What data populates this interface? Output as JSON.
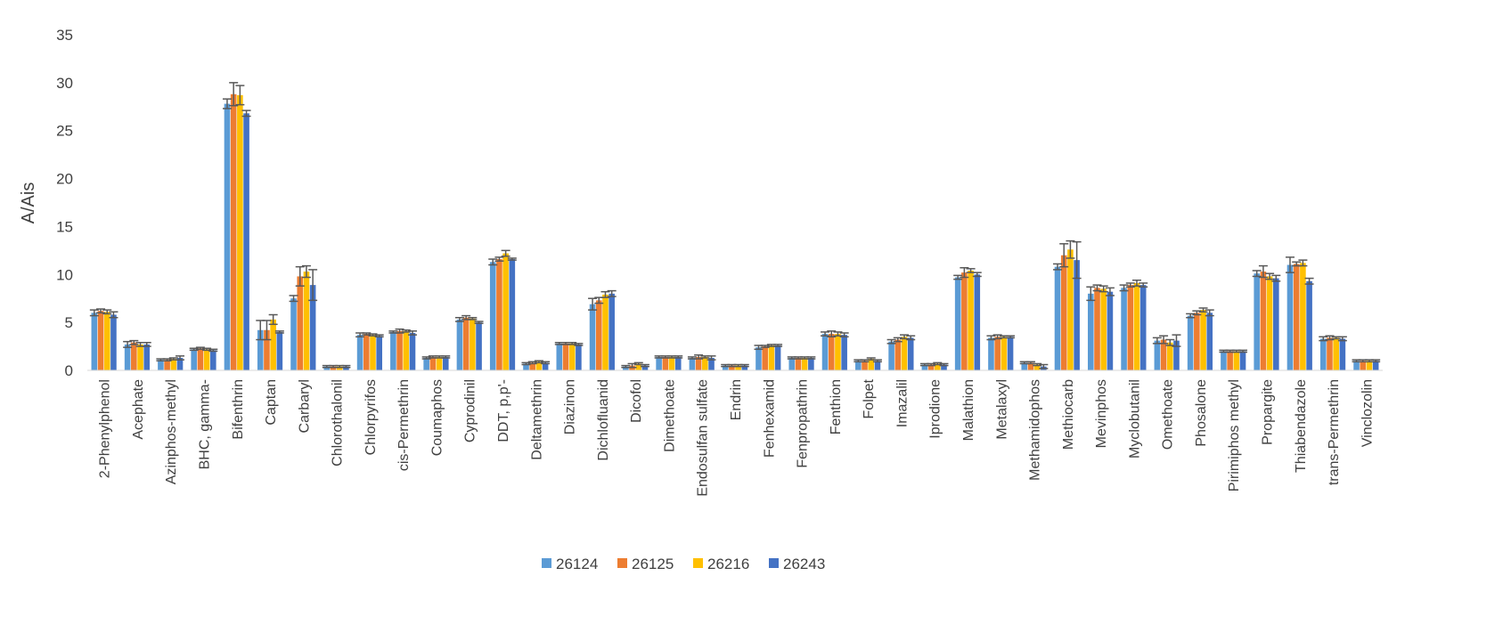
{
  "chart_data": {
    "type": "bar",
    "title": "",
    "xlabel": "",
    "ylabel": "A/Ais",
    "ylim": [
      0,
      35
    ],
    "yticks": [
      0,
      5,
      10,
      15,
      20,
      25,
      30,
      35
    ],
    "grid": false,
    "legend": "bottom",
    "error_bars": true,
    "categories": [
      "2-Phenylphenol",
      "Acephate",
      "Azinphos-methyl",
      "BHC, gamma-",
      "Bifenthrin",
      "Captan",
      "Carbaryl",
      "Chlorothalonil",
      "Chlorpyrifos",
      "cis-Permethrin",
      "Coumaphos",
      "Cyprodinil",
      "DDT, p,p'-",
      "Deltamethrin",
      "Diazinon",
      "Dichlofluanid",
      "Dicofol",
      "Dimethoate",
      "Endosulfan sulfate",
      "Endrin",
      "Fenhexamid",
      "Fenpropathrin",
      "Fenthion",
      "Folpet",
      "Imazalil",
      "Iprodione",
      "Malathion",
      "Metalaxyl",
      "Methamidophos",
      "Methiocarb",
      "Mevinphos",
      "Myclobutanil",
      "Omethoate",
      "Phosalone",
      "Pirimiphos methyl",
      "Propargite",
      "Thiabendazole",
      "trans-Permethrin",
      "Vinclozolin"
    ],
    "series": [
      {
        "name": "26124",
        "color": "#5B9BD5",
        "values": [
          6.0,
          2.7,
          1.1,
          2.2,
          27.8,
          4.2,
          7.5,
          0.4,
          3.7,
          4.0,
          1.3,
          5.3,
          11.3,
          0.7,
          2.8,
          6.9,
          0.4,
          1.4,
          1.3,
          0.5,
          2.4,
          1.3,
          3.8,
          1.0,
          3.0,
          0.6,
          9.7,
          3.4,
          0.8,
          10.8,
          8.0,
          8.6,
          3.1,
          5.7,
          2.0,
          10.1,
          11.0,
          3.3,
          1.0
        ],
        "errors": [
          0.3,
          0.3,
          0.1,
          0.1,
          0.5,
          1.0,
          0.3,
          0.1,
          0.2,
          0.1,
          0.1,
          0.2,
          0.3,
          0.1,
          0.1,
          0.6,
          0.1,
          0.1,
          0.1,
          0.1,
          0.2,
          0.1,
          0.2,
          0.1,
          0.2,
          0.1,
          0.2,
          0.2,
          0.1,
          0.3,
          0.7,
          0.3,
          0.3,
          0.2,
          0.1,
          0.3,
          0.8,
          0.2,
          0.1
        ]
      },
      {
        "name": "26125",
        "color": "#ED7D31",
        "values": [
          6.2,
          2.9,
          1.1,
          2.3,
          28.8,
          4.2,
          9.8,
          0.4,
          3.8,
          4.1,
          1.4,
          5.5,
          11.6,
          0.8,
          2.8,
          7.3,
          0.5,
          1.4,
          1.4,
          0.5,
          2.5,
          1.3,
          3.8,
          1.0,
          3.2,
          0.6,
          10.2,
          3.5,
          0.8,
          12.0,
          8.6,
          8.9,
          3.2,
          6.0,
          2.0,
          10.3,
          11.1,
          3.4,
          1.0
        ],
        "errors": [
          0.2,
          0.2,
          0.1,
          0.1,
          1.2,
          1.0,
          1.0,
          0.1,
          0.1,
          0.2,
          0.1,
          0.2,
          0.2,
          0.1,
          0.1,
          0.3,
          0.2,
          0.1,
          0.2,
          0.1,
          0.1,
          0.1,
          0.3,
          0.1,
          0.2,
          0.1,
          0.5,
          0.2,
          0.1,
          1.2,
          0.3,
          0.2,
          0.4,
          0.2,
          0.1,
          0.6,
          0.2,
          0.2,
          0.1
        ]
      },
      {
        "name": "26216",
        "color": "#FFC000",
        "values": [
          6.1,
          2.7,
          1.2,
          2.2,
          28.7,
          5.3,
          10.3,
          0.4,
          3.7,
          4.1,
          1.4,
          5.4,
          12.2,
          0.9,
          2.8,
          7.9,
          0.7,
          1.4,
          1.4,
          0.5,
          2.6,
          1.3,
          3.8,
          1.2,
          3.5,
          0.7,
          10.4,
          3.5,
          0.6,
          12.6,
          8.5,
          9.1,
          2.9,
          6.3,
          2.0,
          9.8,
          11.2,
          3.4,
          1.0
        ],
        "errors": [
          0.2,
          0.2,
          0.1,
          0.1,
          1.0,
          0.5,
          0.6,
          0.1,
          0.1,
          0.1,
          0.1,
          0.1,
          0.3,
          0.1,
          0.1,
          0.3,
          0.1,
          0.1,
          0.1,
          0.1,
          0.1,
          0.1,
          0.2,
          0.1,
          0.2,
          0.1,
          0.2,
          0.1,
          0.1,
          0.9,
          0.3,
          0.3,
          0.3,
          0.2,
          0.1,
          0.3,
          0.3,
          0.1,
          0.1
        ]
      },
      {
        "name": "26243",
        "color": "#4472C4",
        "values": [
          5.8,
          2.7,
          1.3,
          2.1,
          26.8,
          4.0,
          8.9,
          0.4,
          3.6,
          3.9,
          1.4,
          5.0,
          11.6,
          0.8,
          2.7,
          8.0,
          0.5,
          1.4,
          1.3,
          0.5,
          2.6,
          1.3,
          3.7,
          1.0,
          3.4,
          0.6,
          10.0,
          3.5,
          0.4,
          11.5,
          8.2,
          8.9,
          3.1,
          6.0,
          2.0,
          9.6,
          9.3,
          3.3,
          1.0
        ],
        "errors": [
          0.3,
          0.2,
          0.2,
          0.1,
          0.3,
          0.1,
          1.6,
          0.1,
          0.1,
          0.2,
          0.1,
          0.1,
          0.1,
          0.1,
          0.1,
          0.3,
          0.1,
          0.1,
          0.2,
          0.1,
          0.1,
          0.1,
          0.2,
          0.1,
          0.2,
          0.1,
          0.2,
          0.1,
          0.2,
          1.9,
          0.4,
          0.2,
          0.6,
          0.3,
          0.1,
          0.3,
          0.3,
          0.2,
          0.1
        ]
      }
    ]
  }
}
